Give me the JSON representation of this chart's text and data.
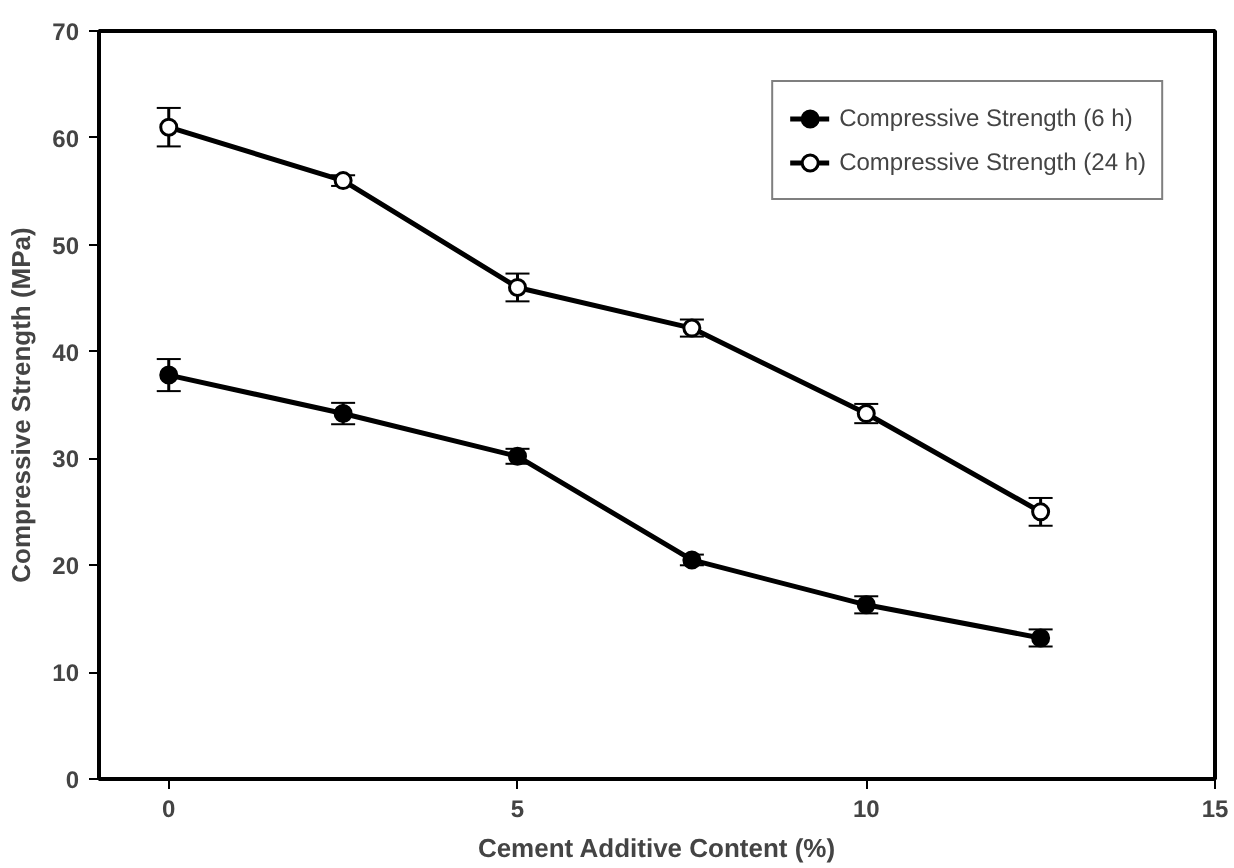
{
  "chart_data": {
    "type": "line",
    "xlabel": "Cement Additive Content (%)",
    "ylabel": "Compressive Strength (MPa)",
    "x": [
      0,
      2.5,
      5,
      7.5,
      10,
      12.5
    ],
    "series": [
      {
        "name": "Compressive Strength (6 h)",
        "color": "#000000",
        "values": [
          37.8,
          34.2,
          30.2,
          20.5,
          16.3,
          13.2
        ],
        "errors": [
          1.5,
          1.0,
          0.7,
          0.5,
          0.8,
          0.8
        ]
      },
      {
        "name": "Compressive Strength (24 h)",
        "color": "#000000",
        "values": [
          61.0,
          56.0,
          46.0,
          42.2,
          34.2,
          25.0
        ],
        "errors": [
          1.8,
          0.5,
          1.3,
          0.8,
          0.9,
          1.3
        ]
      }
    ],
    "xlim": [
      -1,
      15
    ],
    "ylim": [
      0,
      70
    ],
    "xticks": [
      0,
      5,
      10,
      15
    ],
    "yticks": [
      0,
      10,
      20,
      30,
      40,
      50,
      60,
      70
    ],
    "grid": false,
    "legend": "top right",
    "marker": "circle",
    "line_style": "solid"
  }
}
